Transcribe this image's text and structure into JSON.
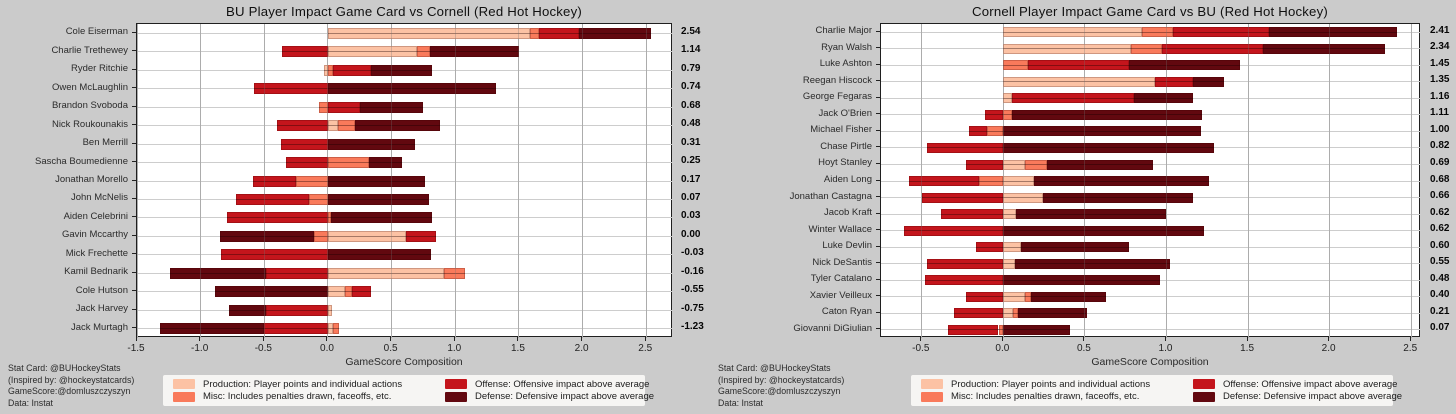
{
  "page": {
    "background": "#cbcbcb"
  },
  "credits": {
    "lines": [
      "Stat Card: @BUHockeyStats",
      "(Inspired by: @hockeystatcards)",
      "GameScore:@domluszczyszyn",
      "Data: Instat"
    ]
  },
  "legend": {
    "items": [
      {
        "key": "production",
        "label": "Production: Player points and individual actions",
        "color": "#fcc2a4"
      },
      {
        "key": "misc",
        "label": "Misc: Includes penalties drawn, faceoffs, etc.",
        "color": "#f97a5b"
      },
      {
        "key": "offense",
        "label": "Offense: Offensive impact above average",
        "color": "#c4151c"
      },
      {
        "key": "defense",
        "label": "Defense: Defensive impact above average",
        "color": "#62080f"
      }
    ]
  },
  "chart_data": [
    {
      "type": "bar",
      "orientation": "horizontal",
      "title": "BU Player Impact Game Card vs Cornell (Red Hot Hockey)",
      "xlabel": "GameScore Composition",
      "xlim": [
        -1.5,
        2.71
      ],
      "xticks": [
        -1.5,
        -1.0,
        -0.5,
        0.0,
        0.5,
        1.0,
        1.5,
        2.0,
        2.5
      ],
      "grid": true,
      "stack_order": [
        "production",
        "misc",
        "offense",
        "defense"
      ],
      "players": [
        {
          "name": "Cole Eiserman",
          "total": "2.54",
          "segments": {
            "production": 1.59,
            "misc": 0.07,
            "offense": 0.31,
            "defense": 0.57
          }
        },
        {
          "name": "Charlie Trethewey",
          "total": "1.14",
          "segments": {
            "production": 0.7,
            "misc": 0.1,
            "offense": -0.36,
            "defense": 0.7
          }
        },
        {
          "name": "Ryder Ritchie",
          "total": "0.79",
          "segments": {
            "production": -0.03,
            "misc": 0.04,
            "offense": 0.3,
            "defense": 0.48
          }
        },
        {
          "name": "Owen McLaughlin",
          "total": "0.74",
          "segments": {
            "offense": -0.58,
            "defense": 1.32
          }
        },
        {
          "name": "Brandon Svoboda",
          "total": "0.68",
          "segments": {
            "misc": -0.07,
            "offense": 0.25,
            "defense": 0.5
          }
        },
        {
          "name": "Nick Roukounakis",
          "total": "0.48",
          "segments": {
            "production": 0.08,
            "misc": 0.13,
            "offense": -0.4,
            "defense": 0.67
          }
        },
        {
          "name": "Ben Merrill",
          "total": "0.31",
          "segments": {
            "offense": -0.37,
            "defense": 0.68
          }
        },
        {
          "name": "Sascha Boumedienne",
          "total": "0.25",
          "segments": {
            "misc": 0.32,
            "offense": -0.33,
            "defense": 0.26
          }
        },
        {
          "name": "Jonathan Morello",
          "total": "0.17",
          "segments": {
            "misc": -0.25,
            "offense": -0.34,
            "defense": 0.76
          }
        },
        {
          "name": "John McNelis",
          "total": "0.07",
          "segments": {
            "misc": -0.15,
            "offense": -0.57,
            "defense": 0.79
          }
        },
        {
          "name": "Aiden Celebrini",
          "total": "0.03",
          "segments": {
            "misc": 0.02,
            "offense": -0.79,
            "defense": 0.8
          }
        },
        {
          "name": "Gavin Mccarthy",
          "total": "0.00",
          "segments": {
            "production": 0.61,
            "misc": -0.11,
            "offense": 0.24,
            "defense": -0.74
          }
        },
        {
          "name": "Mick Frechette",
          "total": "-0.03",
          "segments": {
            "offense": -0.84,
            "defense": 0.81
          }
        },
        {
          "name": "Kamil Bednarik",
          "total": "-0.16",
          "segments": {
            "production": 0.91,
            "misc": 0.17,
            "offense": -0.49,
            "defense": -0.75
          }
        },
        {
          "name": "Cole Hutson",
          "total": "-0.55",
          "segments": {
            "production": 0.13,
            "misc": 0.06,
            "offense": 0.15,
            "defense": -0.89
          }
        },
        {
          "name": "Jack Harvey",
          "total": "-0.75",
          "segments": {
            "production": 0.03,
            "offense": -0.49,
            "defense": -0.29
          }
        },
        {
          "name": "Jack Murtagh",
          "total": "-1.23",
          "segments": {
            "production": 0.04,
            "misc": 0.05,
            "offense": -0.5,
            "defense": -0.82
          }
        }
      ]
    },
    {
      "type": "bar",
      "orientation": "horizontal",
      "title": "Cornell Player Impact Game Card vs BU (Red Hot Hockey)",
      "xlabel": "GameScore Composition",
      "xlim": [
        -0.75,
        2.56
      ],
      "xticks": [
        -0.5,
        0.0,
        0.5,
        1.0,
        1.5,
        2.0,
        2.5
      ],
      "grid": true,
      "stack_order": [
        "production",
        "misc",
        "offense",
        "defense"
      ],
      "players": [
        {
          "name": "Charlie Major",
          "total": "2.41",
          "segments": {
            "production": 0.85,
            "misc": 0.19,
            "offense": 0.59,
            "defense": 0.78
          }
        },
        {
          "name": "Ryan Walsh",
          "total": "2.34",
          "segments": {
            "production": 0.78,
            "misc": 0.19,
            "offense": 0.62,
            "defense": 0.75
          }
        },
        {
          "name": "Luke Ashton",
          "total": "1.45",
          "segments": {
            "misc": 0.15,
            "offense": 0.62,
            "defense": 0.68
          }
        },
        {
          "name": "Reegan Hiscock",
          "total": "1.35",
          "segments": {
            "production": 0.93,
            "offense": 0.23,
            "defense": 0.19
          }
        },
        {
          "name": "George Fegaras",
          "total": "1.16",
          "segments": {
            "production": 0.05,
            "offense": 0.75,
            "defense": 0.36
          }
        },
        {
          "name": "Jack O'Brien",
          "total": "1.11",
          "segments": {
            "misc": 0.05,
            "offense": -0.11,
            "defense": 1.17
          }
        },
        {
          "name": "Michael Fisher",
          "total": "1.00",
          "segments": {
            "misc": -0.1,
            "offense": -0.11,
            "defense": 1.21
          }
        },
        {
          "name": "Chase Pirtle",
          "total": "0.82",
          "segments": {
            "offense": -0.47,
            "defense": 1.29
          }
        },
        {
          "name": "Hoyt Stanley",
          "total": "0.69",
          "segments": {
            "production": 0.13,
            "misc": 0.14,
            "offense": -0.23,
            "defense": 0.65
          }
        },
        {
          "name": "Aiden Long",
          "total": "0.68",
          "segments": {
            "production": 0.19,
            "misc": -0.15,
            "offense": -0.43,
            "defense": 1.07
          }
        },
        {
          "name": "Jonathan Castagna",
          "total": "0.66",
          "segments": {
            "production": 0.24,
            "offense": -0.5,
            "defense": 0.92
          }
        },
        {
          "name": "Jacob Kraft",
          "total": "0.62",
          "segments": {
            "production": 0.08,
            "offense": -0.38,
            "defense": 0.92
          }
        },
        {
          "name": "Winter Wallace",
          "total": "0.62",
          "segments": {
            "offense": -0.61,
            "defense": 1.23
          }
        },
        {
          "name": "Luke Devlin",
          "total": "0.60",
          "segments": {
            "production": 0.11,
            "offense": -0.17,
            "defense": 0.66
          }
        },
        {
          "name": "Nick DeSantis",
          "total": "0.55",
          "segments": {
            "production": 0.07,
            "offense": -0.47,
            "defense": 0.95
          }
        },
        {
          "name": "Tyler Catalano",
          "total": "0.48",
          "segments": {
            "offense": -0.48,
            "defense": 0.96
          }
        },
        {
          "name": "Xavier Veilleux",
          "total": "0.40",
          "segments": {
            "production": 0.13,
            "misc": 0.04,
            "offense": -0.23,
            "defense": 0.46
          }
        },
        {
          "name": "Caton Ryan",
          "total": "0.21",
          "segments": {
            "production": 0.06,
            "misc": 0.03,
            "offense": -0.3,
            "defense": 0.42
          }
        },
        {
          "name": "Giovanni DiGiulian",
          "total": "0.07",
          "segments": {
            "misc": -0.03,
            "offense": -0.31,
            "defense": 0.41
          }
        }
      ]
    }
  ]
}
